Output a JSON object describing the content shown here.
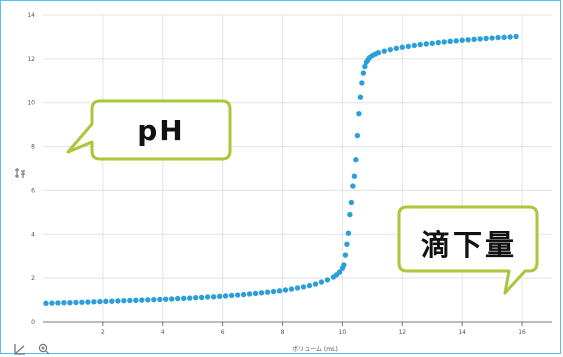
{
  "chart_data": {
    "type": "scatter",
    "title": "",
    "xlabel": "ボリューム (mL)",
    "ylabel": "",
    "xlim": [
      0,
      17
    ],
    "ylim": [
      0,
      14
    ],
    "x_ticks": [
      2,
      4,
      6,
      8,
      10,
      12,
      14,
      16
    ],
    "y_ticks": [
      0,
      2,
      4,
      6,
      8,
      10,
      12,
      14
    ],
    "grid": true,
    "marker_color": "#2a9fd8",
    "series": [
      {
        "points": [
          [
            0.1,
            0.85
          ],
          [
            0.3,
            0.86
          ],
          [
            0.5,
            0.87
          ],
          [
            0.7,
            0.88
          ],
          [
            0.9,
            0.88
          ],
          [
            1.1,
            0.89
          ],
          [
            1.3,
            0.9
          ],
          [
            1.5,
            0.91
          ],
          [
            1.7,
            0.92
          ],
          [
            1.9,
            0.93
          ],
          [
            2.1,
            0.94
          ],
          [
            2.3,
            0.95
          ],
          [
            2.5,
            0.96
          ],
          [
            2.7,
            0.97
          ],
          [
            2.9,
            0.98
          ],
          [
            3.1,
            0.99
          ],
          [
            3.3,
            1.0
          ],
          [
            3.5,
            1.01
          ],
          [
            3.7,
            1.02
          ],
          [
            3.9,
            1.03
          ],
          [
            4.1,
            1.04
          ],
          [
            4.3,
            1.05
          ],
          [
            4.5,
            1.07
          ],
          [
            4.7,
            1.08
          ],
          [
            4.9,
            1.09
          ],
          [
            5.1,
            1.11
          ],
          [
            5.3,
            1.12
          ],
          [
            5.5,
            1.14
          ],
          [
            5.7,
            1.15
          ],
          [
            5.9,
            1.17
          ],
          [
            6.1,
            1.19
          ],
          [
            6.3,
            1.21
          ],
          [
            6.5,
            1.23
          ],
          [
            6.7,
            1.25
          ],
          [
            6.9,
            1.28
          ],
          [
            7.1,
            1.3
          ],
          [
            7.3,
            1.33
          ],
          [
            7.5,
            1.36
          ],
          [
            7.7,
            1.39
          ],
          [
            7.9,
            1.42
          ],
          [
            8.1,
            1.46
          ],
          [
            8.3,
            1.5
          ],
          [
            8.5,
            1.55
          ],
          [
            8.7,
            1.6
          ],
          [
            8.9,
            1.66
          ],
          [
            9.1,
            1.73
          ],
          [
            9.3,
            1.82
          ],
          [
            9.5,
            1.92
          ],
          [
            9.7,
            2.05
          ],
          [
            9.8,
            2.15
          ],
          [
            9.9,
            2.27
          ],
          [
            10.0,
            2.45
          ],
          [
            10.05,
            2.6
          ],
          [
            10.1,
            3.05
          ],
          [
            10.15,
            3.55
          ],
          [
            10.2,
            4.05
          ],
          [
            10.25,
            4.9
          ],
          [
            10.3,
            5.45
          ],
          [
            10.35,
            6.2
          ],
          [
            10.4,
            6.65
          ],
          [
            10.45,
            7.4
          ],
          [
            10.5,
            8.5
          ],
          [
            10.55,
            9.5
          ],
          [
            10.6,
            10.25
          ],
          [
            10.65,
            10.9
          ],
          [
            10.7,
            11.35
          ],
          [
            10.75,
            11.65
          ],
          [
            10.8,
            11.85
          ],
          [
            10.85,
            11.95
          ],
          [
            10.9,
            12.05
          ],
          [
            11.0,
            12.15
          ],
          [
            11.1,
            12.22
          ],
          [
            11.2,
            12.28
          ],
          [
            11.4,
            12.35
          ],
          [
            11.6,
            12.42
          ],
          [
            11.8,
            12.48
          ],
          [
            12.0,
            12.53
          ],
          [
            12.2,
            12.57
          ],
          [
            12.4,
            12.61
          ],
          [
            12.6,
            12.65
          ],
          [
            12.8,
            12.68
          ],
          [
            13.0,
            12.71
          ],
          [
            13.2,
            12.74
          ],
          [
            13.4,
            12.77
          ],
          [
            13.6,
            12.8
          ],
          [
            13.8,
            12.82
          ],
          [
            14.0,
            12.85
          ],
          [
            14.2,
            12.87
          ],
          [
            14.4,
            12.89
          ],
          [
            14.6,
            12.91
          ],
          [
            14.8,
            12.93
          ],
          [
            15.0,
            12.95
          ],
          [
            15.2,
            12.97
          ],
          [
            15.4,
            12.98
          ],
          [
            15.6,
            13.0
          ],
          [
            15.8,
            13.02
          ]
        ]
      }
    ],
    "annotations": [
      {
        "text": "pH"
      },
      {
        "text": "滴下量"
      }
    ]
  },
  "icons": {
    "y_axis_tool": "axis-scale-icon",
    "x_axis_tool": "axis-corner-icon",
    "zoom_tool": "zoom-icon"
  }
}
